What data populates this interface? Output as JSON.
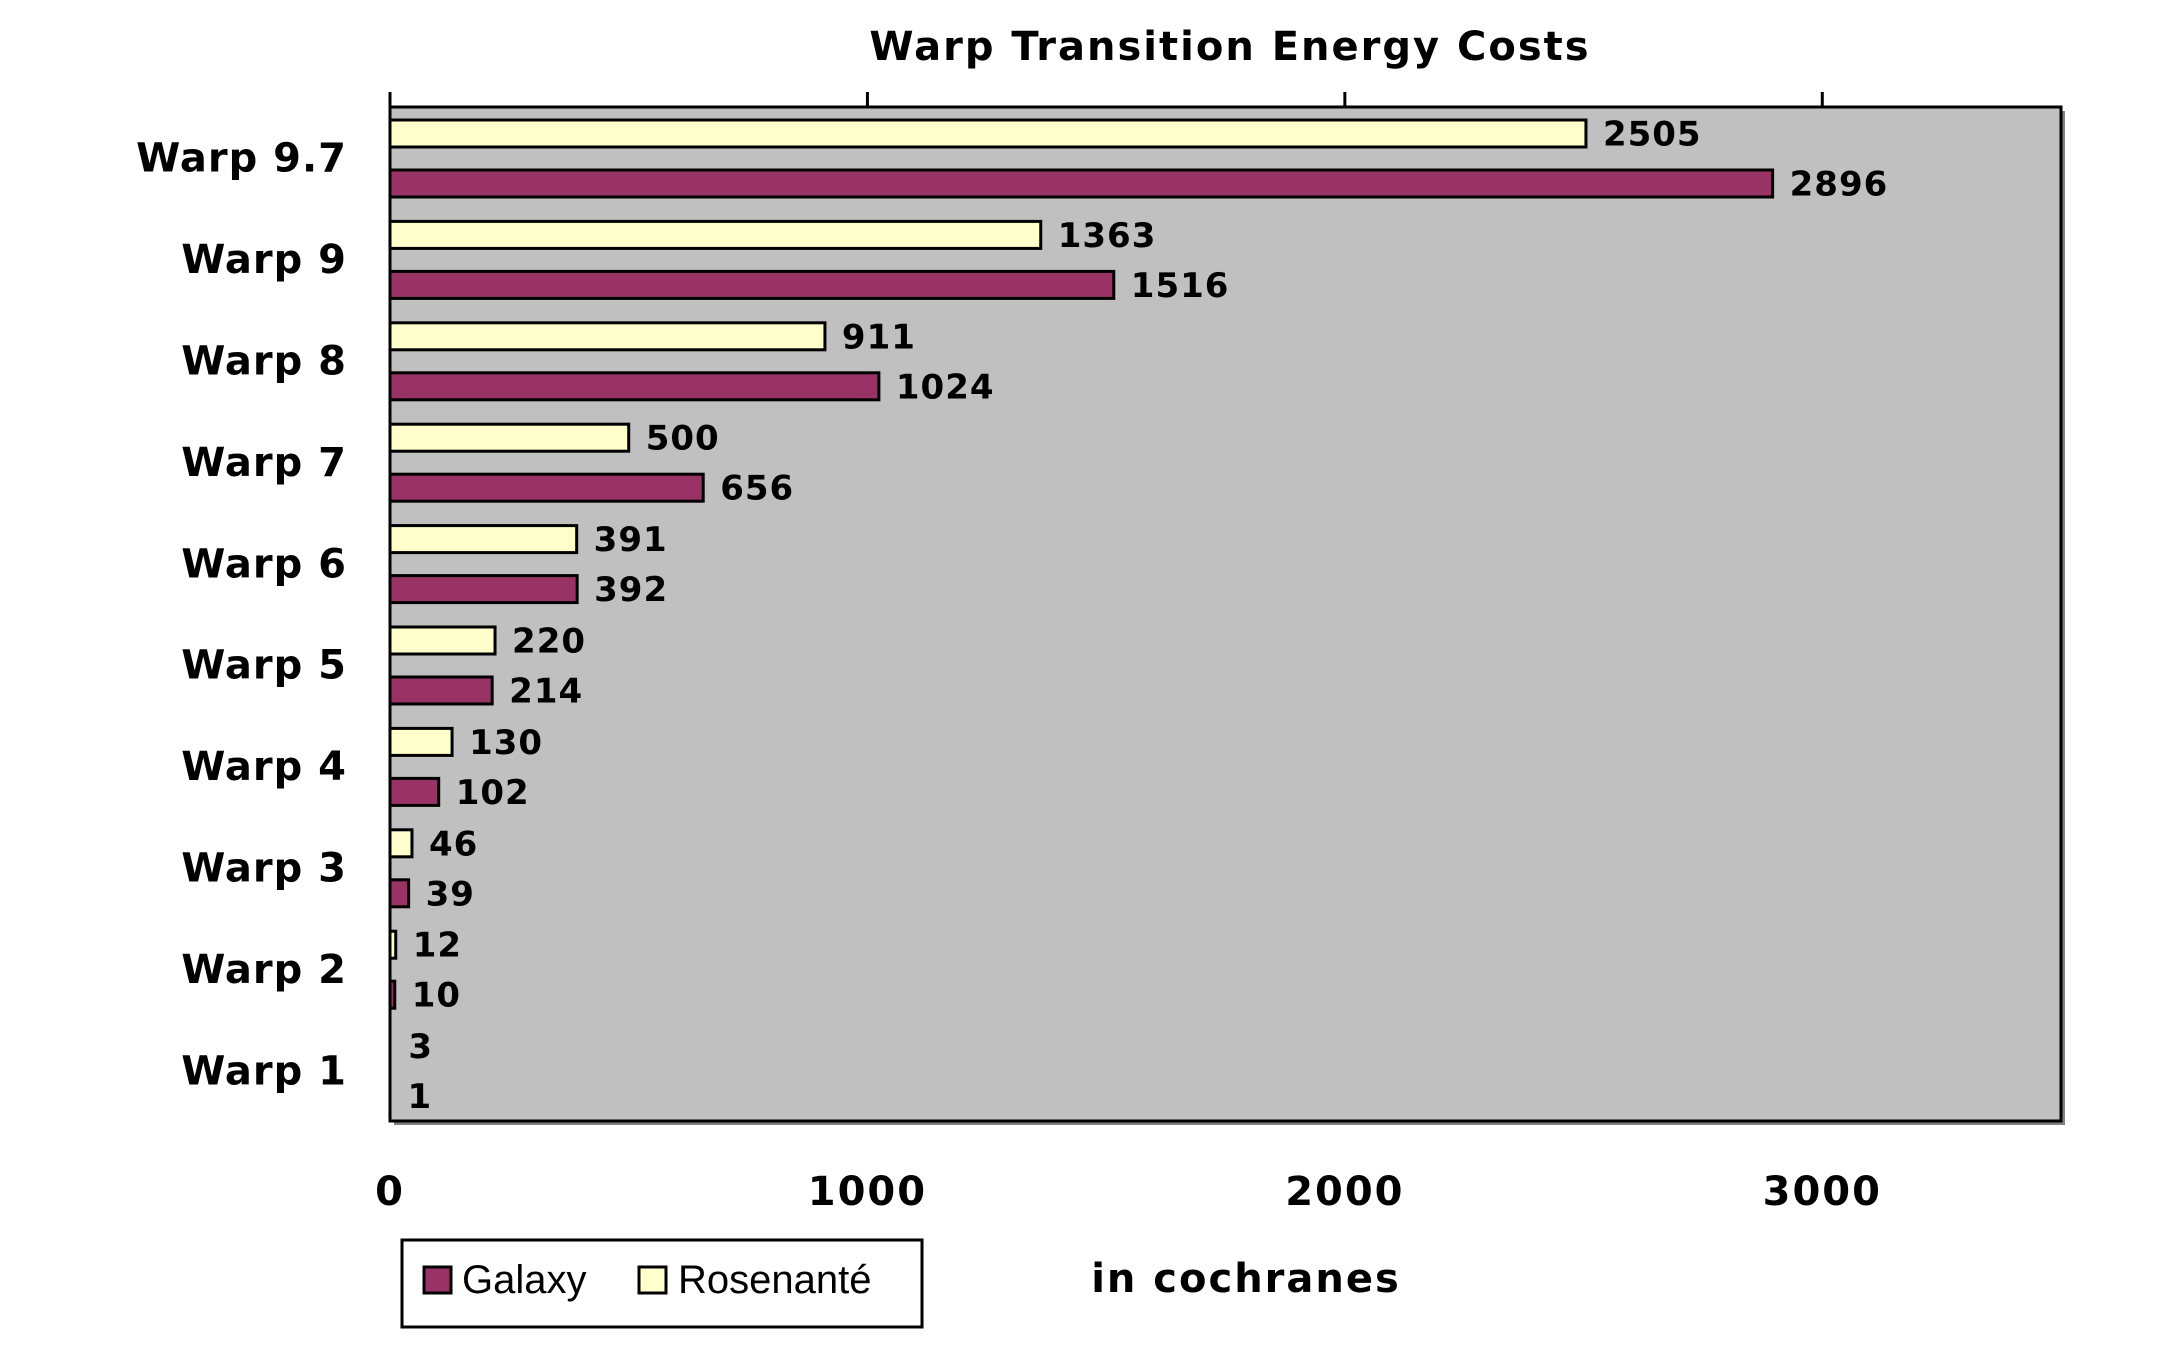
{
  "chart_data": {
    "type": "bar",
    "orientation": "horizontal",
    "title": "Warp Transition Energy Costs",
    "xlabel": "in cochranes",
    "ylabel": "",
    "categories": [
      "Warp 9.7",
      "Warp 9",
      "Warp 8",
      "Warp 7",
      "Warp 6",
      "Warp 5",
      "Warp 4",
      "Warp 3",
      "Warp 2",
      "Warp 1"
    ],
    "series": [
      {
        "name": "Rosenanté",
        "color": "#FFFFCC",
        "values": [
          2505,
          1363,
          911,
          500,
          391,
          220,
          130,
          46,
          12,
          3
        ]
      },
      {
        "name": "Galaxy",
        "color": "#993366",
        "values": [
          2896,
          1516,
          1024,
          656,
          392,
          214,
          102,
          39,
          10,
          1
        ]
      }
    ],
    "xlim": [
      0,
      3500
    ],
    "xticks": [
      0,
      1000,
      2000,
      3000
    ],
    "xtick_labels": [
      "0",
      "1000",
      "2000",
      "3000"
    ],
    "data_labels": true,
    "grid": false,
    "plot_background": "#C0C0C0",
    "legend": {
      "position": "bottom-left",
      "entries": [
        "Galaxy",
        "Rosenanté"
      ]
    }
  }
}
